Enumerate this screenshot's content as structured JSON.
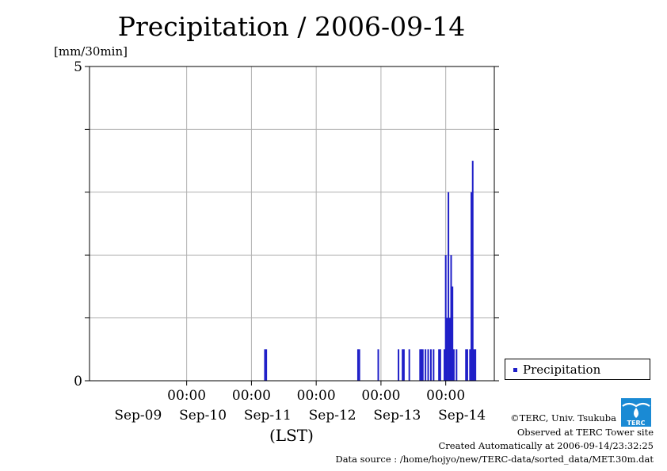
{
  "header": {
    "title": "Precipitation / 2006-09-14",
    "unit_label": "[mm/30min]",
    "x_unit_label": "(LST)"
  },
  "legend": {
    "label": "Precipitation",
    "color": "#1f1fc8"
  },
  "footer": {
    "copyright": "©TERC, Univ. Tsukuba",
    "observed": "Observed at TERC Tower site",
    "created": "Created Automatically at 2006-09-14/23:32:25",
    "source": "Data source : /home/hojyo/new/TERC-data/sorted_data/MET.30m.dat"
  },
  "logo": {
    "icon": "terc-logo-icon",
    "text": "TERC",
    "color": "#1a8ad4"
  },
  "chart_data": {
    "type": "bar",
    "title": "Precipitation / 2006-09-14",
    "ylabel": "[mm/30min]",
    "xlabel": "(LST)",
    "ylim": [
      0,
      5
    ],
    "yticks_labeled": [
      0,
      5
    ],
    "yticks_minor": [
      1,
      2,
      3,
      4
    ],
    "xlim": [
      "2006-09-08 12:00",
      "2006-09-14 18:00"
    ],
    "xtick_time_labels": [
      "00:00",
      "00:00",
      "00:00",
      "00:00",
      "00:00"
    ],
    "xtick_date_labels": [
      "Sep-09",
      "Sep-10",
      "Sep-11",
      "Sep-12",
      "Sep-13",
      "Sep-14"
    ],
    "xtick_times": [
      "2006-09-10 00:00",
      "2006-09-11 00:00",
      "2006-09-12 00:00",
      "2006-09-13 00:00",
      "2006-09-14 00:00"
    ],
    "date_label_positions": [
      "2006-09-09 06:00",
      "2006-09-10 06:00",
      "2006-09-11 06:00",
      "2006-09-12 06:00",
      "2006-09-13 06:00",
      "2006-09-14 06:00"
    ],
    "grid": true,
    "legend_position": "right",
    "series": [
      {
        "name": "Precipitation",
        "color": "#1f1fc8",
        "x": [
          "2006-09-11 05:00",
          "2006-09-11 05:30",
          "2006-09-12 15:30",
          "2006-09-12 16:00",
          "2006-09-12 23:00",
          "2006-09-13 06:30",
          "2006-09-13 08:00",
          "2006-09-13 08:30",
          "2006-09-13 10:30",
          "2006-09-13 14:30",
          "2006-09-13 15:00",
          "2006-09-13 15:30",
          "2006-09-13 16:30",
          "2006-09-13 17:30",
          "2006-09-13 18:30",
          "2006-09-13 19:30",
          "2006-09-13 21:30",
          "2006-09-13 22:00",
          "2006-09-13 23:30",
          "2006-09-14 00:00",
          "2006-09-14 00:30",
          "2006-09-14 01:00",
          "2006-09-14 01:30",
          "2006-09-14 02:00",
          "2006-09-14 02:30",
          "2006-09-14 03:00",
          "2006-09-14 04:00",
          "2006-09-14 07:30",
          "2006-09-14 08:00",
          "2006-09-14 09:00",
          "2006-09-14 09:30",
          "2006-09-14 10:00",
          "2006-09-14 10:30",
          "2006-09-14 11:00"
        ],
        "values": [
          0.5,
          0.5,
          0.5,
          0.5,
          0.5,
          0.5,
          0.5,
          0.5,
          0.5,
          0.5,
          0.5,
          0.5,
          0.5,
          0.5,
          0.5,
          0.5,
          0.5,
          0.5,
          0.5,
          2.0,
          1.0,
          3.0,
          1.0,
          2.0,
          1.5,
          0.5,
          0.5,
          0.5,
          0.5,
          0.5,
          3.0,
          3.5,
          0.5,
          0.5
        ]
      }
    ]
  }
}
